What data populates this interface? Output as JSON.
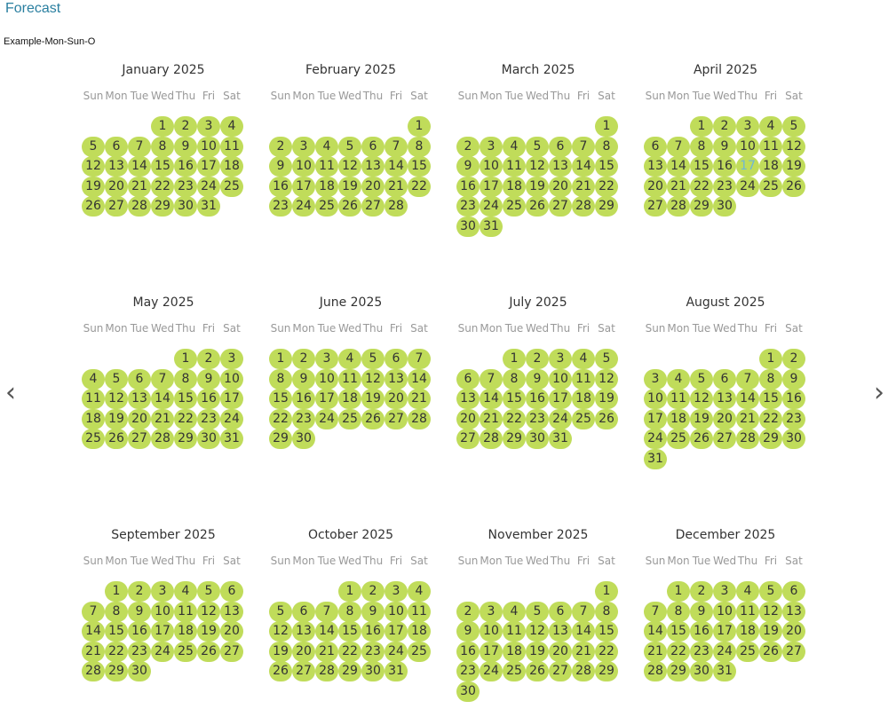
{
  "page": {
    "title": "Forecast",
    "subtitle": "Example-Mon-Sun-O",
    "nav_prev": "‹",
    "nav_next": "›",
    "day_color": "#c0dc5a",
    "today_color": "#6fb6d6"
  },
  "weekdays": [
    "Sun",
    "Mon",
    "Tue",
    "Wed",
    "Thu",
    "Fri",
    "Sat"
  ],
  "months": [
    {
      "label": "January 2025",
      "start": 3,
      "days": 31
    },
    {
      "label": "February 2025",
      "start": 6,
      "days": 28
    },
    {
      "label": "March 2025",
      "start": 6,
      "days": 31
    },
    {
      "label": "April 2025",
      "start": 2,
      "days": 30,
      "today": 17
    },
    {
      "label": "May 2025",
      "start": 4,
      "days": 31
    },
    {
      "label": "June 2025",
      "start": 0,
      "days": 30
    },
    {
      "label": "July 2025",
      "start": 2,
      "days": 31
    },
    {
      "label": "August 2025",
      "start": 5,
      "days": 31
    },
    {
      "label": "September 2025",
      "start": 1,
      "days": 30
    },
    {
      "label": "October 2025",
      "start": 3,
      "days": 31
    },
    {
      "label": "November 2025",
      "start": 6,
      "days": 30
    },
    {
      "label": "December 2025",
      "start": 1,
      "days": 31
    }
  ]
}
